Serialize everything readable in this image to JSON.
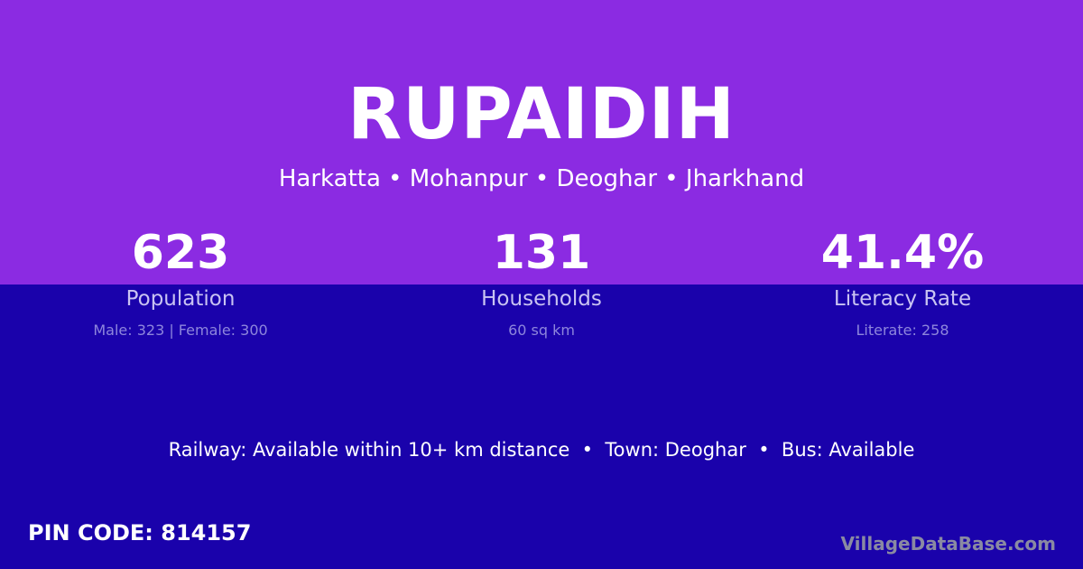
{
  "village": {
    "name": "RUPAIDIH",
    "location": "Harkatta • Mohanpur • Deoghar • Jharkhand"
  },
  "stats": [
    {
      "value": "623",
      "label": "Population",
      "detail": "Male: 323 | Female: 300"
    },
    {
      "value": "131",
      "label": "Households",
      "detail": "60 sq km"
    },
    {
      "value": "41.4%",
      "label": "Literacy Rate",
      "detail": "Literate: 258"
    }
  ],
  "info_line": "Railway: Available within 10+ km distance  •  Town: Deoghar  •  Bus: Available",
  "pin_code": "PIN CODE: 814157",
  "brand": "VillageDataBase.com",
  "colors": {
    "top_bg": "#8b2be2",
    "bottom_bg": "#1a02ab"
  }
}
